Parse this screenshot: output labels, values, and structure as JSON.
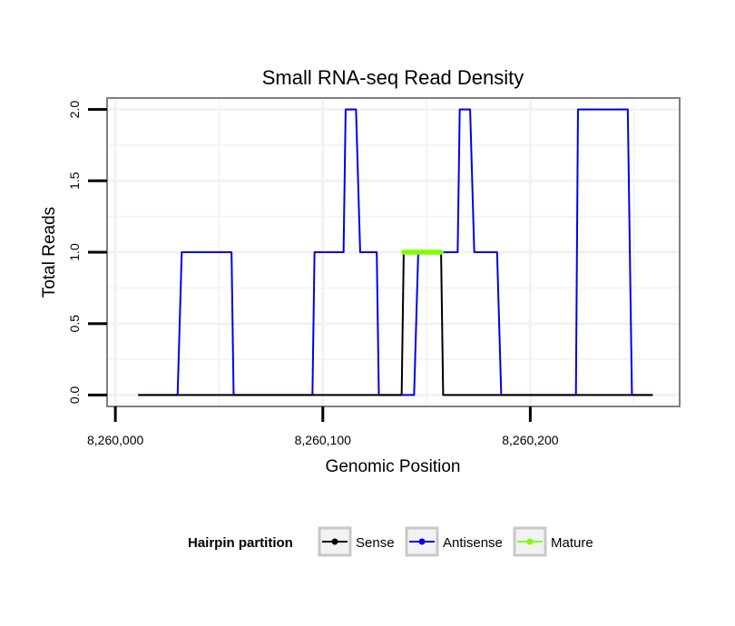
{
  "chart_data": {
    "type": "line",
    "title": "Small RNA-seq Read Density",
    "xlabel": "Genomic Position",
    "ylabel": "Total Reads",
    "xlim": [
      8259996,
      8260272
    ],
    "ylim": [
      -0.08,
      2.08
    ],
    "x_ticks": [
      8260000,
      8260100,
      8260200
    ],
    "x_tick_labels": [
      "8,260,000",
      "8,260,100",
      "8,260,200"
    ],
    "y_ticks": [
      0,
      0.5,
      1,
      1.5,
      2
    ],
    "y_tick_labels": [
      "0.0",
      "0.5",
      "1.0",
      "1.5",
      "2.0"
    ],
    "grid": true,
    "legend": {
      "title": "Hairpin partition",
      "position": "bottom",
      "entries": [
        "Sense",
        "Antisense",
        "Mature"
      ]
    },
    "series": [
      {
        "name": "Antisense",
        "color": "#0000ee",
        "x": [
          8260011,
          8260030,
          8260032,
          8260056,
          8260057,
          8260095,
          8260096,
          8260110,
          8260111,
          8260116,
          8260118,
          8260126,
          8260127,
          8260144,
          8260146,
          8260165,
          8260166,
          8260171,
          8260173,
          8260184,
          8260186,
          8260222,
          8260223,
          8260247,
          8260249,
          8260259
        ],
        "values": [
          0,
          0,
          1,
          1,
          0,
          0,
          1,
          1,
          2,
          2,
          1,
          1,
          0,
          0,
          1,
          1,
          2,
          2,
          1,
          1,
          0,
          0,
          2,
          2,
          0,
          0
        ]
      },
      {
        "name": "Sense",
        "color": "#000000",
        "x": [
          8260011,
          8260138,
          8260139,
          8260157,
          8260158,
          8260259
        ],
        "values": [
          0,
          0,
          1,
          1,
          0,
          0
        ]
      },
      {
        "name": "Mature",
        "color": "#7fff00",
        "x": [
          8260139,
          8260157
        ],
        "values": [
          1,
          1
        ]
      }
    ]
  }
}
